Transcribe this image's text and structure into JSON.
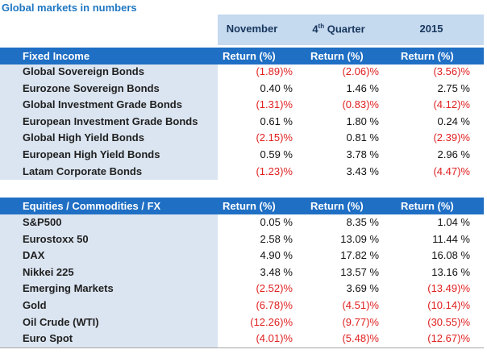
{
  "title": "Global markets in numbers",
  "periods": {
    "p1": "November",
    "p2_main": "4",
    "p2_sup": "th",
    "p2_rest": " Quarter",
    "p3": "2015"
  },
  "fixed_income": {
    "header": "Fixed Income",
    "col1": "Return (%)",
    "col2": "Return (%)",
    "col3": "Return (%)",
    "rows": [
      {
        "label": "Global Sovereign Bonds",
        "v1": "(1.89)%",
        "v2": "(2.06)%",
        "v3": "(3.56)%"
      },
      {
        "label": "Eurozone Sovereign Bonds",
        "v1": "0.40 %",
        "v2": "1.46 %",
        "v3": "2.75 %"
      },
      {
        "label": "Global Investment Grade Bonds",
        "v1": "(1.31)%",
        "v2": "(0.83)%",
        "v3": "(4.12)%"
      },
      {
        "label": "European Investment Grade Bonds",
        "v1": "0.61 %",
        "v2": "1.80 %",
        "v3": "0.24 %"
      },
      {
        "label": "Global High Yield Bonds",
        "v1": "(2.15)%",
        "v2": "0.81 %",
        "v3": "(2.39)%"
      },
      {
        "label": "European High Yield Bonds",
        "v1": "0.59 %",
        "v2": "3.78 %",
        "v3": "2.96 %"
      },
      {
        "label": "Latam Corporate Bonds",
        "v1": "(1.23)%",
        "v2": "3.43 %",
        "v3": "(4.47)%"
      }
    ]
  },
  "equities": {
    "header": "Equities / Commodities / FX",
    "col1": "Return (%)",
    "col2": "Return (%)",
    "col3": "Return (%)",
    "rows": [
      {
        "label": "S&P500",
        "v1": "0.05 %",
        "v2": "8.35 %",
        "v3": "1.04 %"
      },
      {
        "label": "Eurostoxx 50",
        "v1": "2.58 %",
        "v2": "13.09 %",
        "v3": "11.44 %"
      },
      {
        "label": "DAX",
        "v1": "4.90 %",
        "v2": "17.82 %",
        "v3": "16.08 %"
      },
      {
        "label": "Nikkei 225",
        "v1": "3.48 %",
        "v2": "13.57 %",
        "v3": "13.16 %"
      },
      {
        "label": "Emerging Markets",
        "v1": "(2.52)%",
        "v2": "3.69 %",
        "v3": "(13.49)%"
      },
      {
        "label": "Gold",
        "v1": "(6.78)%",
        "v2": "(4.51)%",
        "v3": "(10.14)%"
      },
      {
        "label": "Oil Crude (WTI)",
        "v1": "(12.26)%",
        "v2": "(9.77)%",
        "v3": "(30.55)%"
      },
      {
        "label": "Euro Spot",
        "v1": "(4.01)%",
        "v2": "(5.48)%",
        "v3": "(12.67)%"
      }
    ]
  },
  "colors": {
    "accent": "#1f6fc4",
    "negative": "#e02020",
    "band": "#c5d9ef",
    "label_bg": "#dbe5f1"
  }
}
